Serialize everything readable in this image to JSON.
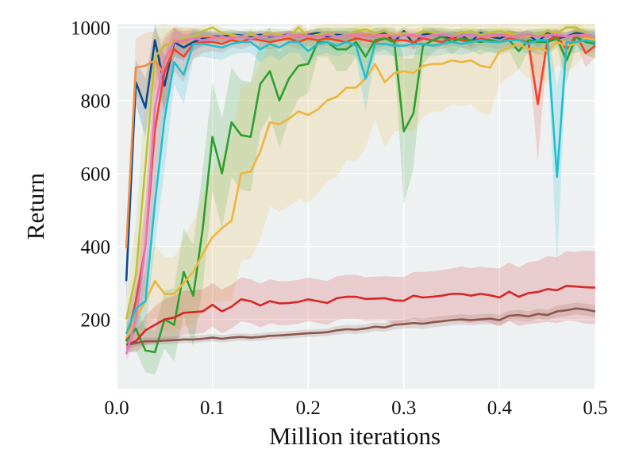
{
  "chart_data": {
    "type": "line",
    "xlabel": "Million iterations",
    "ylabel": "Return",
    "xlim": [
      0.0,
      0.5
    ],
    "ylim": [
      10,
      1010
    ],
    "x_ticks": [
      0.0,
      0.1,
      0.2,
      0.3,
      0.4,
      0.5
    ],
    "x_tick_labels": [
      "0.0",
      "0.1",
      "0.2",
      "0.3",
      "0.4",
      "0.5"
    ],
    "y_ticks": [
      200,
      400,
      600,
      800,
      1000
    ],
    "y_tick_labels": [
      "200",
      "400",
      "600",
      "800",
      "1000"
    ],
    "grid": true,
    "background": "#edf1f2",
    "x": [
      0.01,
      0.02,
      0.03,
      0.04,
      0.05,
      0.06,
      0.07,
      0.08,
      0.09,
      0.1,
      0.11,
      0.12,
      0.13,
      0.14,
      0.15,
      0.16,
      0.17,
      0.18,
      0.19,
      0.2,
      0.21,
      0.22,
      0.23,
      0.24,
      0.25,
      0.26,
      0.27,
      0.28,
      0.29,
      0.3,
      0.31,
      0.32,
      0.33,
      0.34,
      0.35,
      0.36,
      0.37,
      0.38,
      0.39,
      0.4,
      0.41,
      0.42,
      0.43,
      0.44,
      0.45,
      0.46,
      0.47,
      0.48,
      0.49,
      0.5
    ],
    "series": [
      {
        "color": "#0d4a8c",
        "values": [
          305,
          850,
          780,
          965,
          840,
          960,
          945,
          960,
          970,
          975,
          975,
          980,
          978,
          975,
          980,
          975,
          978,
          980,
          975,
          980,
          985,
          975,
          980,
          978,
          975,
          980,
          975,
          985,
          960,
          990,
          955,
          980,
          985,
          975,
          970,
          980,
          960,
          985,
          975,
          970,
          980,
          975,
          980,
          960,
          985,
          970,
          975,
          985,
          980,
          960
        ],
        "band": [
          55,
          60,
          80,
          60,
          80,
          40,
          35,
          25,
          20,
          15,
          15,
          12,
          12,
          12,
          12,
          12,
          12,
          12,
          12,
          12,
          12,
          12,
          12,
          12,
          12,
          12,
          12,
          12,
          15,
          12,
          15,
          12,
          12,
          12,
          12,
          12,
          15,
          12,
          12,
          12,
          12,
          12,
          12,
          15,
          12,
          12,
          12,
          12,
          12,
          15
        ]
      },
      {
        "color": "#f28c44",
        "values": [
          395,
          890,
          895,
          910,
          870,
          965,
          960,
          970,
          975,
          975,
          970,
          975,
          975,
          980,
          975,
          978,
          975,
          975,
          980,
          975,
          975,
          980,
          975,
          978,
          975,
          980,
          975,
          975,
          978,
          980,
          975,
          975,
          978,
          980,
          975,
          978,
          980,
          975,
          975,
          978,
          980,
          975,
          978,
          975,
          980,
          978,
          975,
          980,
          975,
          970
        ],
        "band": [
          60,
          80,
          90,
          80,
          90,
          40,
          40,
          30,
          20,
          15,
          15,
          12,
          12,
          12,
          12,
          12,
          12,
          12,
          12,
          12,
          12,
          12,
          12,
          12,
          12,
          12,
          12,
          12,
          12,
          12,
          12,
          12,
          12,
          12,
          12,
          12,
          12,
          12,
          12,
          12,
          12,
          12,
          12,
          12,
          12,
          12,
          12,
          12,
          12,
          12
        ]
      },
      {
        "color": "#f0432a",
        "values": [
          140,
          250,
          400,
          720,
          880,
          940,
          920,
          955,
          960,
          960,
          955,
          965,
          960,
          970,
          965,
          960,
          965,
          970,
          960,
          970,
          965,
          970,
          965,
          960,
          970,
          965,
          960,
          970,
          965,
          965,
          960,
          970,
          965,
          960,
          970,
          965,
          960,
          970,
          965,
          960,
          970,
          965,
          960,
          790,
          965,
          975,
          940,
          980,
          930,
          950
        ],
        "band": [
          40,
          80,
          120,
          160,
          100,
          60,
          70,
          40,
          30,
          25,
          25,
          20,
          20,
          20,
          20,
          20,
          20,
          20,
          20,
          20,
          20,
          20,
          20,
          20,
          20,
          20,
          20,
          20,
          20,
          20,
          20,
          20,
          20,
          20,
          20,
          20,
          20,
          20,
          20,
          20,
          20,
          20,
          20,
          160,
          20,
          20,
          40,
          20,
          40,
          30
        ]
      },
      {
        "color": "#c0c038",
        "values": [
          200,
          320,
          620,
          920,
          950,
          960,
          970,
          975,
          990,
          1000,
          985,
          980,
          975,
          980,
          975,
          985,
          980,
          975,
          1000,
          975,
          980,
          985,
          975,
          980,
          990,
          995,
          985,
          990,
          975,
          985,
          980,
          990,
          985,
          980,
          975,
          985,
          990,
          980,
          985,
          990,
          985,
          980,
          975,
          980,
          990,
          985,
          1000,
          1000,
          985,
          970
        ],
        "band": [
          60,
          140,
          200,
          80,
          60,
          40,
          30,
          25,
          15,
          12,
          15,
          15,
          15,
          15,
          15,
          15,
          15,
          15,
          12,
          15,
          15,
          15,
          15,
          15,
          12,
          12,
          15,
          12,
          15,
          15,
          15,
          12,
          15,
          15,
          15,
          15,
          12,
          15,
          15,
          12,
          15,
          15,
          15,
          15,
          12,
          15,
          10,
          10,
          15,
          20
        ]
      },
      {
        "color": "#2ca02c",
        "values": [
          140,
          175,
          115,
          110,
          200,
          185,
          330,
          265,
          450,
          700,
          600,
          740,
          705,
          700,
          845,
          880,
          800,
          860,
          895,
          900,
          960,
          960,
          940,
          940,
          960,
          920,
          965,
          970,
          960,
          715,
          765,
          950,
          965,
          975,
          960,
          970,
          965,
          960,
          965,
          960,
          965,
          935,
          965,
          960,
          960,
          970,
          910,
          975,
          960,
          955
        ],
        "band": [
          30,
          60,
          60,
          60,
          80,
          100,
          120,
          140,
          160,
          150,
          150,
          150,
          150,
          150,
          130,
          120,
          130,
          110,
          90,
          80,
          40,
          40,
          60,
          60,
          40,
          60,
          35,
          30,
          40,
          200,
          150,
          50,
          35,
          25,
          35,
          25,
          30,
          35,
          30,
          35,
          30,
          50,
          30,
          35,
          35,
          25,
          60,
          25,
          35,
          40
        ]
      },
      {
        "color": "#edb53d",
        "values": [
          150,
          200,
          250,
          305,
          270,
          270,
          300,
          330,
          380,
          425,
          450,
          470,
          600,
          605,
          660,
          740,
          735,
          750,
          770,
          760,
          775,
          800,
          810,
          835,
          835,
          860,
          900,
          850,
          875,
          880,
          875,
          895,
          900,
          900,
          910,
          905,
          910,
          895,
          890,
          935,
          945,
          955,
          940,
          945,
          935,
          960,
          950,
          955,
          970,
          965
        ],
        "band": [
          40,
          60,
          80,
          100,
          100,
          100,
          120,
          140,
          160,
          180,
          200,
          220,
          240,
          240,
          240,
          230,
          240,
          240,
          240,
          240,
          230,
          220,
          220,
          200,
          200,
          190,
          150,
          180,
          160,
          160,
          160,
          140,
          130,
          130,
          120,
          120,
          120,
          130,
          130,
          90,
          80,
          70,
          80,
          80,
          90,
          60,
          70,
          60,
          40,
          50
        ]
      },
      {
        "color": "#d62728",
        "values": [
          130,
          140,
          170,
          185,
          200,
          205,
          218,
          220,
          222,
          240,
          222,
          235,
          255,
          250,
          238,
          250,
          244,
          245,
          248,
          255,
          250,
          245,
          258,
          262,
          262,
          256,
          257,
          258,
          252,
          251,
          265,
          260,
          262,
          265,
          270,
          270,
          265,
          270,
          266,
          260,
          276,
          262,
          272,
          275,
          283,
          280,
          292,
          290,
          288,
          287
        ],
        "band": [
          20,
          30,
          40,
          50,
          55,
          60,
          60,
          60,
          60,
          60,
          60,
          60,
          60,
          60,
          60,
          60,
          60,
          60,
          60,
          60,
          60,
          60,
          60,
          60,
          60,
          60,
          60,
          60,
          65,
          65,
          65,
          70,
          70,
          70,
          70,
          75,
          75,
          75,
          75,
          80,
          80,
          80,
          85,
          85,
          90,
          90,
          95,
          95,
          100,
          100
        ]
      },
      {
        "color": "#8c564b",
        "values": [
          130,
          135,
          140,
          140,
          142,
          143,
          145,
          145,
          147,
          150,
          147,
          150,
          152,
          150,
          152,
          155,
          156,
          158,
          160,
          162,
          163,
          165,
          170,
          173,
          172,
          175,
          180,
          178,
          185,
          187,
          190,
          188,
          192,
          195,
          198,
          200,
          198,
          200,
          202,
          198,
          210,
          212,
          208,
          215,
          212,
          222,
          225,
          230,
          227,
          222
        ],
        "band": [
          10,
          10,
          10,
          10,
          10,
          10,
          10,
          10,
          10,
          10,
          10,
          10,
          10,
          10,
          10,
          10,
          10,
          10,
          10,
          10,
          10,
          10,
          12,
          12,
          12,
          12,
          12,
          12,
          12,
          12,
          14,
          14,
          14,
          14,
          14,
          14,
          14,
          14,
          14,
          14,
          14,
          14,
          14,
          14,
          14,
          16,
          16,
          16,
          16,
          16
        ]
      },
      {
        "color": "#e377c2",
        "values": [
          105,
          200,
          400,
          780,
          910,
          960,
          965,
          970,
          965,
          970,
          975,
          970,
          975,
          970,
          975,
          978,
          975,
          980,
          975,
          978,
          975,
          980,
          975,
          978,
          980,
          975,
          978,
          980,
          975,
          978,
          980,
          975,
          978,
          980,
          975,
          978,
          980,
          975,
          978,
          980,
          975,
          978,
          980,
          975,
          978,
          980,
          975,
          978,
          980,
          975
        ],
        "band": [
          20,
          60,
          120,
          120,
          60,
          30,
          25,
          20,
          20,
          15,
          15,
          12,
          12,
          12,
          12,
          12,
          12,
          12,
          12,
          12,
          12,
          12,
          12,
          12,
          12,
          12,
          12,
          12,
          12,
          12,
          12,
          12,
          12,
          12,
          12,
          12,
          12,
          12,
          12,
          12,
          12,
          12,
          12,
          12,
          12,
          12,
          12,
          12,
          12,
          12
        ]
      },
      {
        "color": "#1fbfd0",
        "values": [
          160,
          230,
          250,
          520,
          750,
          905,
          870,
          955,
          955,
          950,
          945,
          955,
          960,
          960,
          940,
          955,
          945,
          960,
          960,
          935,
          955,
          960,
          950,
          960,
          950,
          860,
          955,
          955,
          950,
          950,
          955,
          955,
          950,
          955,
          960,
          955,
          960,
          965,
          960,
          960,
          965,
          965,
          955,
          965,
          965,
          590,
          960,
          960,
          965,
          960
        ],
        "band": [
          30,
          60,
          80,
          120,
          140,
          60,
          80,
          40,
          35,
          35,
          35,
          30,
          30,
          30,
          35,
          30,
          35,
          30,
          30,
          40,
          30,
          30,
          30,
          30,
          30,
          90,
          30,
          30,
          30,
          30,
          30,
          30,
          30,
          30,
          30,
          30,
          30,
          25,
          30,
          30,
          25,
          25,
          30,
          25,
          25,
          250,
          30,
          30,
          25,
          30
        ]
      }
    ]
  }
}
